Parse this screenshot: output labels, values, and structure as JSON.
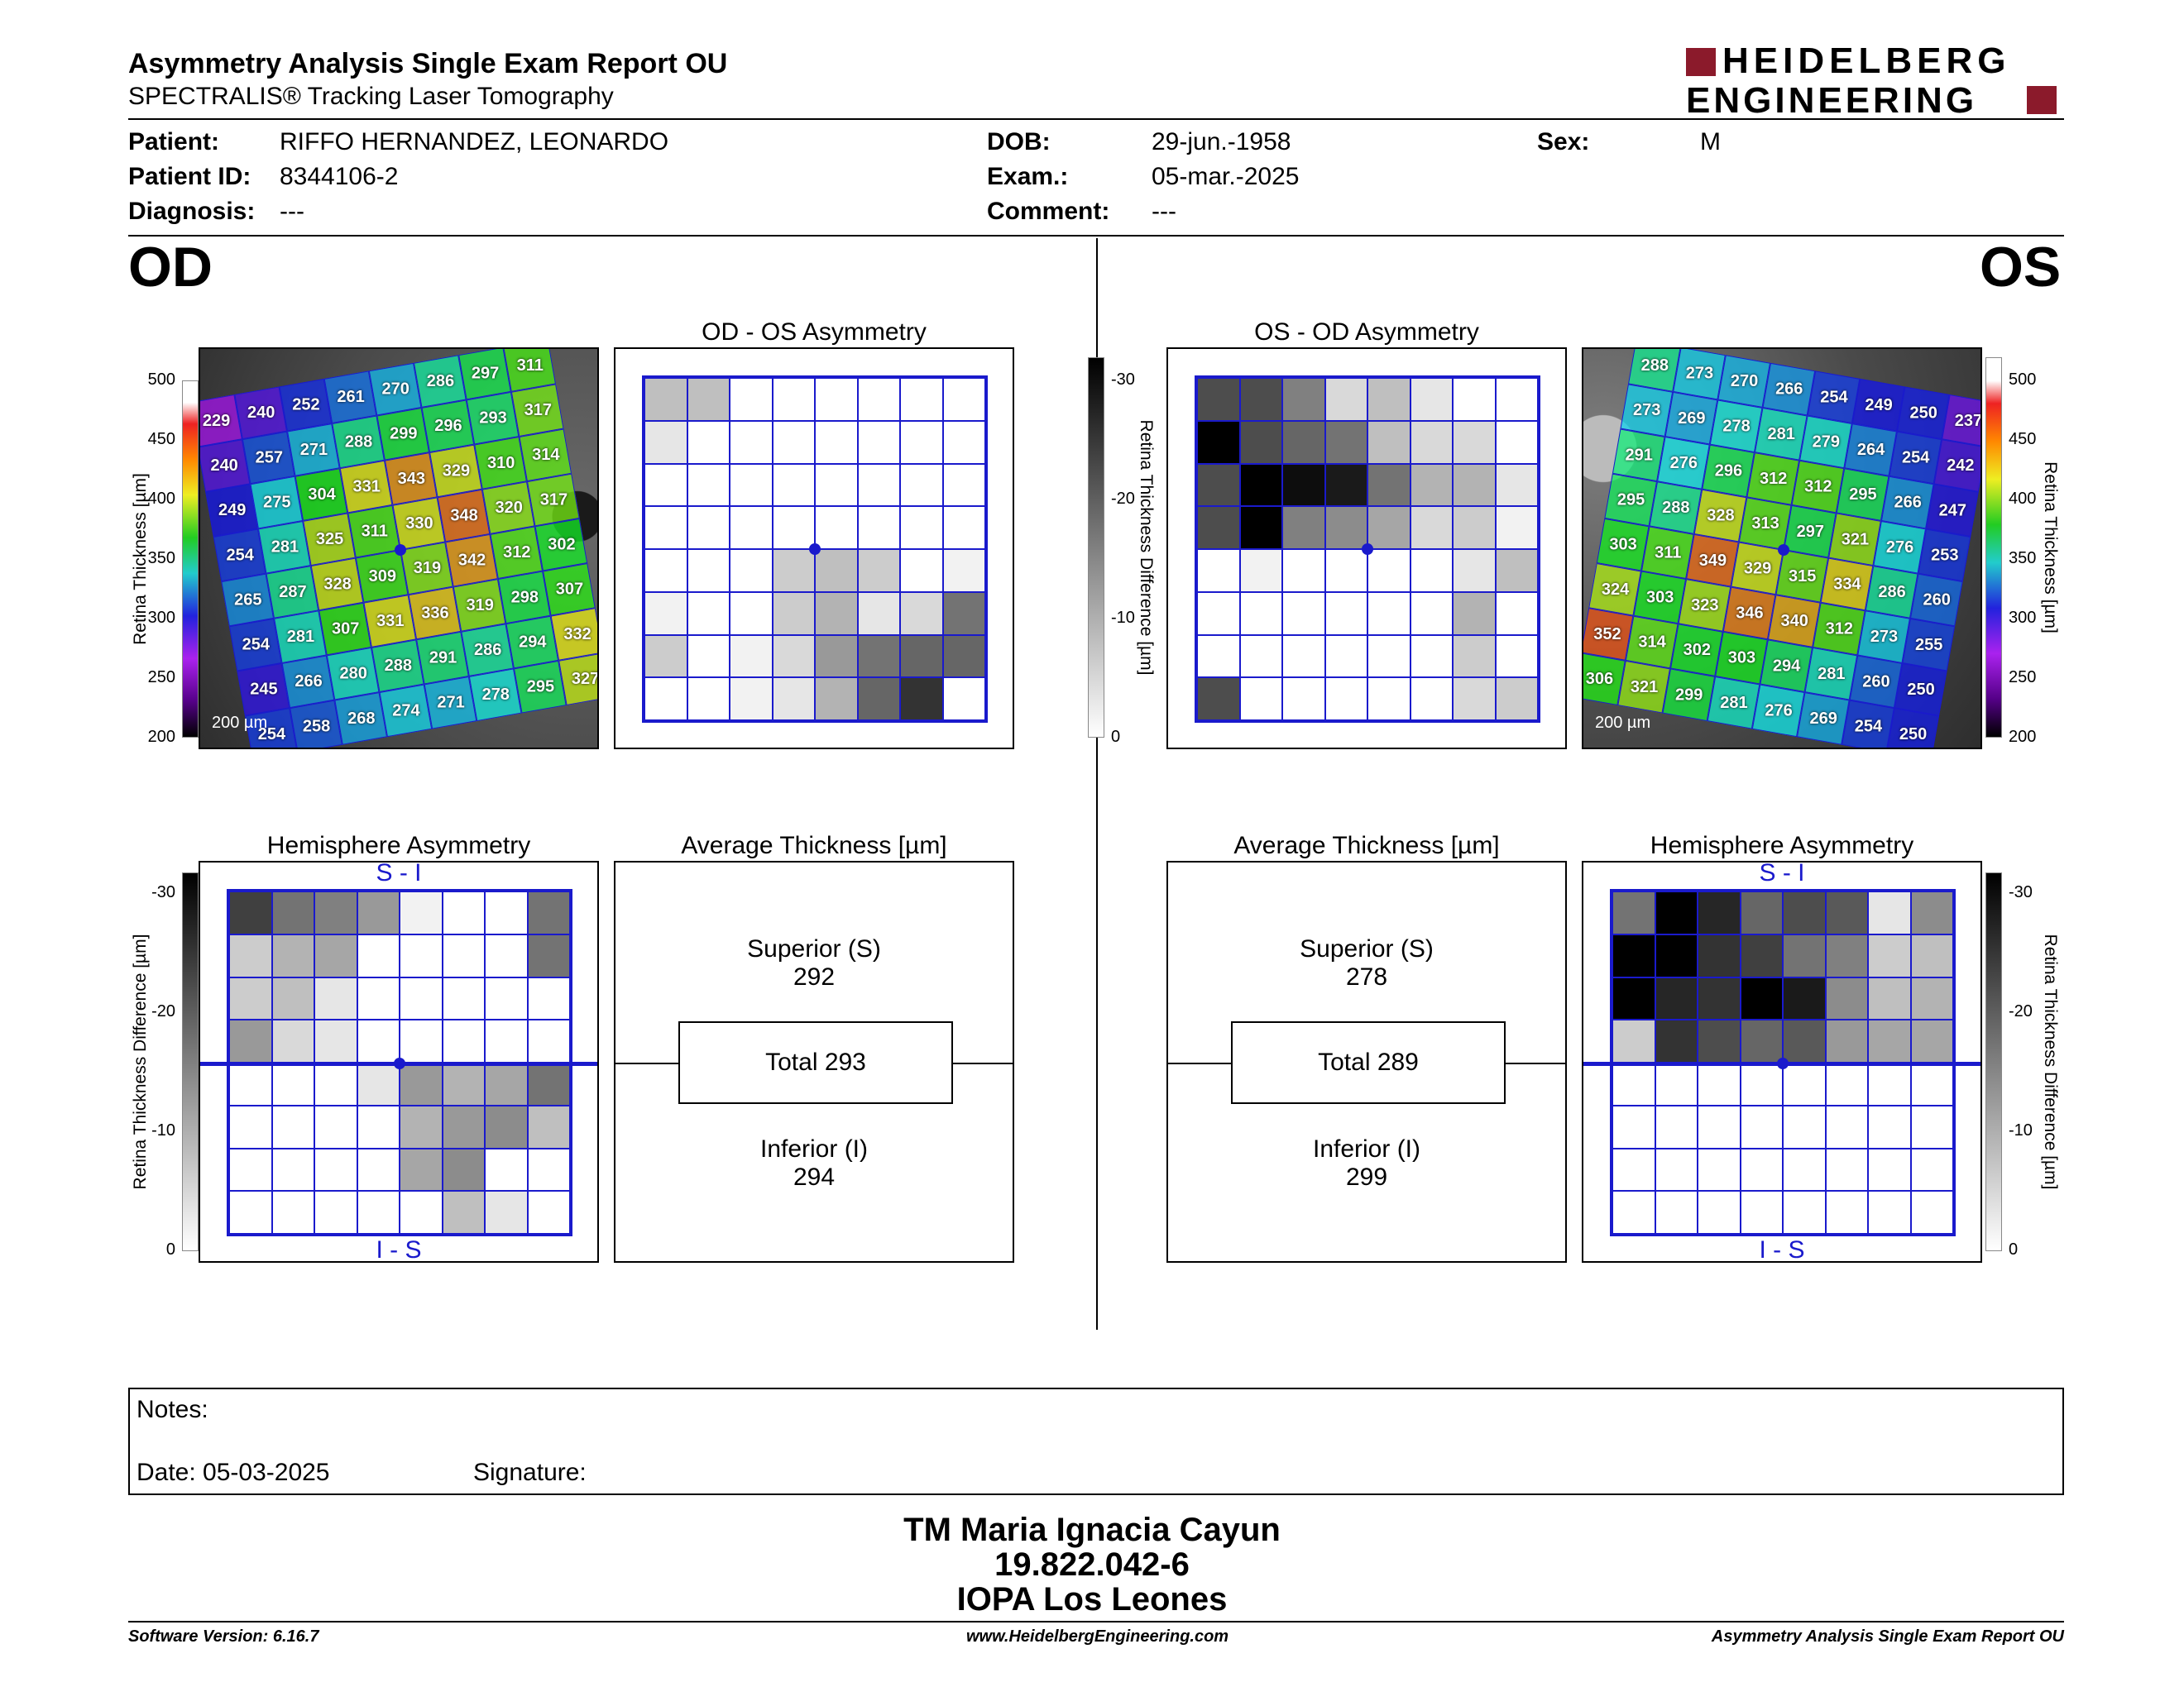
{
  "header": {
    "title": "Asymmetry Analysis Single Exam Report OU",
    "subtitle": "SPECTRALIS® Tracking Laser Tomography",
    "logo_line1": "HEIDELBERG",
    "logo_line2": "ENGINEERING",
    "logo_color": "#8b1a2b"
  },
  "patient": {
    "patient_label": "Patient:",
    "patient_value": "RIFFO HERNANDEZ, LEONARDO",
    "id_label": "Patient ID:",
    "id_value": "8344106-2",
    "diag_label": "Diagnosis:",
    "diag_value": "---",
    "dob_label": "DOB:",
    "dob_value": "29-jun.-1958",
    "exam_label": "Exam.:",
    "exam_value": "05-mar.-2025",
    "comment_label": "Comment:",
    "comment_value": "---",
    "sex_label": "Sex:",
    "sex_value": "M"
  },
  "od": {
    "eye_label": "OD",
    "asym_title": "OD - OS Asymmetry",
    "avg_title": "Average Thickness [µm]",
    "hemi_title": "Hemisphere Asymmetry",
    "superior_label": "Superior (S)",
    "superior_value": "292",
    "total_label": "Total 293",
    "inferior_label": "Inferior (I)",
    "inferior_value": "294",
    "scale_text": "200 µm",
    "si_top": "S - I",
    "si_bottom": "I - S",
    "thickness_grid": [
      [
        229,
        240,
        252,
        261,
        270,
        286,
        297,
        311
      ],
      [
        240,
        257,
        271,
        288,
        299,
        296,
        293,
        317
      ],
      [
        249,
        275,
        304,
        331,
        343,
        329,
        310,
        314
      ],
      [
        254,
        281,
        325,
        311,
        330,
        348,
        320,
        317
      ],
      [
        265,
        287,
        328,
        309,
        319,
        342,
        312,
        302
      ],
      [
        254,
        281,
        307,
        331,
        336,
        319,
        298,
        307
      ],
      [
        245,
        266,
        280,
        288,
        291,
        286,
        294,
        332
      ],
      [
        254,
        258,
        268,
        274,
        271,
        278,
        295,
        327
      ]
    ],
    "asym_grid": [
      [
        0.25,
        0.25,
        0,
        0,
        0,
        0,
        0,
        0
      ],
      [
        0.1,
        0,
        0,
        0,
        0,
        0,
        0,
        0
      ],
      [
        0,
        0,
        0,
        0,
        0,
        0,
        0,
        0
      ],
      [
        0,
        0,
        0,
        0,
        0,
        0,
        0,
        0
      ],
      [
        0,
        0,
        0,
        0.2,
        0.25,
        0.2,
        0,
        0.05
      ],
      [
        0.05,
        0,
        0,
        0.2,
        0.3,
        0.1,
        0.15,
        0.55
      ],
      [
        0.2,
        0,
        0.05,
        0.15,
        0.4,
        0.55,
        0.6,
        0.6
      ],
      [
        0,
        0,
        0.05,
        0.1,
        0.3,
        0.6,
        0.8,
        0
      ]
    ],
    "hemi_grid": [
      [
        0.75,
        0.55,
        0.5,
        0.4,
        0.05,
        0,
        0,
        0.55
      ],
      [
        0.2,
        0.3,
        0.35,
        0,
        0,
        0,
        0,
        0.55
      ],
      [
        0.2,
        0.25,
        0.1,
        0,
        0,
        0,
        0,
        0
      ],
      [
        0.4,
        0.15,
        0.1,
        0,
        0,
        0,
        0,
        0
      ],
      [
        0,
        0,
        0,
        0.1,
        0.4,
        0.3,
        0.35,
        0.55
      ],
      [
        0,
        0,
        0,
        0,
        0.3,
        0.4,
        0.45,
        0.25
      ],
      [
        0,
        0,
        0,
        0,
        0.35,
        0.45,
        0,
        0
      ],
      [
        0,
        0,
        0,
        0,
        0,
        0.25,
        0.1,
        0
      ]
    ]
  },
  "os": {
    "eye_label": "OS",
    "asym_title": "OS - OD Asymmetry",
    "avg_title": "Average Thickness [µm]",
    "hemi_title": "Hemisphere Asymmetry",
    "superior_label": "Superior (S)",
    "superior_value": "278",
    "total_label": "Total 289",
    "inferior_label": "Inferior (I)",
    "inferior_value": "299",
    "scale_text": "200 µm",
    "si_top": "S - I",
    "si_bottom": "I - S",
    "thickness_grid": [
      [
        288,
        273,
        270,
        266,
        254,
        249,
        250,
        237
      ],
      [
        273,
        269,
        278,
        281,
        279,
        264,
        254,
        242
      ],
      [
        291,
        276,
        296,
        312,
        312,
        295,
        266,
        247
      ],
      [
        295,
        288,
        328,
        313,
        297,
        321,
        276,
        253
      ],
      [
        303,
        311,
        349,
        329,
        315,
        334,
        286,
        260
      ],
      [
        324,
        303,
        323,
        346,
        340,
        312,
        273,
        255
      ],
      [
        352,
        314,
        302,
        303,
        294,
        281,
        260,
        250
      ],
      [
        306,
        321,
        299,
        281,
        276,
        269,
        254,
        250
      ]
    ],
    "asym_grid": [
      [
        0.7,
        0.7,
        0.5,
        0.15,
        0.25,
        0.1,
        0,
        0
      ],
      [
        1.0,
        0.7,
        0.6,
        0.55,
        0.25,
        0.15,
        0.15,
        0
      ],
      [
        0.7,
        1.0,
        0.95,
        0.9,
        0.55,
        0.3,
        0.3,
        0.1
      ],
      [
        0.7,
        1.0,
        0.5,
        0.45,
        0.35,
        0.15,
        0.2,
        0.05
      ],
      [
        0,
        0.05,
        0,
        0,
        0,
        0,
        0.1,
        0.25
      ],
      [
        0,
        0,
        0,
        0,
        0,
        0,
        0.3,
        0
      ],
      [
        0,
        0,
        0,
        0,
        0,
        0,
        0.2,
        0
      ],
      [
        0.7,
        0,
        0,
        0,
        0,
        0,
        0.15,
        0.2
      ]
    ],
    "hemi_grid": [
      [
        0.55,
        1.0,
        0.85,
        0.6,
        0.7,
        0.65,
        0.1,
        0.45
      ],
      [
        1.0,
        1.0,
        0.8,
        0.75,
        0.55,
        0.5,
        0.2,
        0.25
      ],
      [
        1.0,
        0.85,
        0.8,
        1.0,
        0.9,
        0.45,
        0.25,
        0.3
      ],
      [
        0.2,
        0.8,
        0.7,
        0.6,
        0.65,
        0.4,
        0.35,
        0.35
      ],
      [
        0,
        0,
        0,
        0,
        0,
        0,
        0,
        0
      ],
      [
        0,
        0,
        0,
        0,
        0,
        0,
        0,
        0
      ],
      [
        0,
        0,
        0,
        0,
        0,
        0,
        0,
        0
      ],
      [
        0,
        0,
        0,
        0,
        0,
        0,
        0,
        0
      ]
    ]
  },
  "scales": {
    "thickness_ticks": [
      "500",
      "450",
      "400",
      "350",
      "300",
      "250",
      "200"
    ],
    "thickness_label": "Retina Thickness [µm]",
    "diff_ticks": [
      "-30",
      "-20",
      "-10",
      "0"
    ],
    "diff_label": "Retina Thickness Difference [µm]"
  },
  "notes": {
    "notes_label": "Notes:",
    "date_label": "Date: 05-03-2025",
    "signature_label": "Signature:"
  },
  "signature_block": {
    "name": "TM Maria Ignacia Cayun",
    "rut": "19.822.042-6",
    "clinic": "IOPA Los Leones"
  },
  "footer": {
    "version": "Software Version: 6.16.7",
    "website": "www.HeidelbergEngineering.com",
    "report": "Asymmetry Analysis Single Exam Report OU"
  }
}
